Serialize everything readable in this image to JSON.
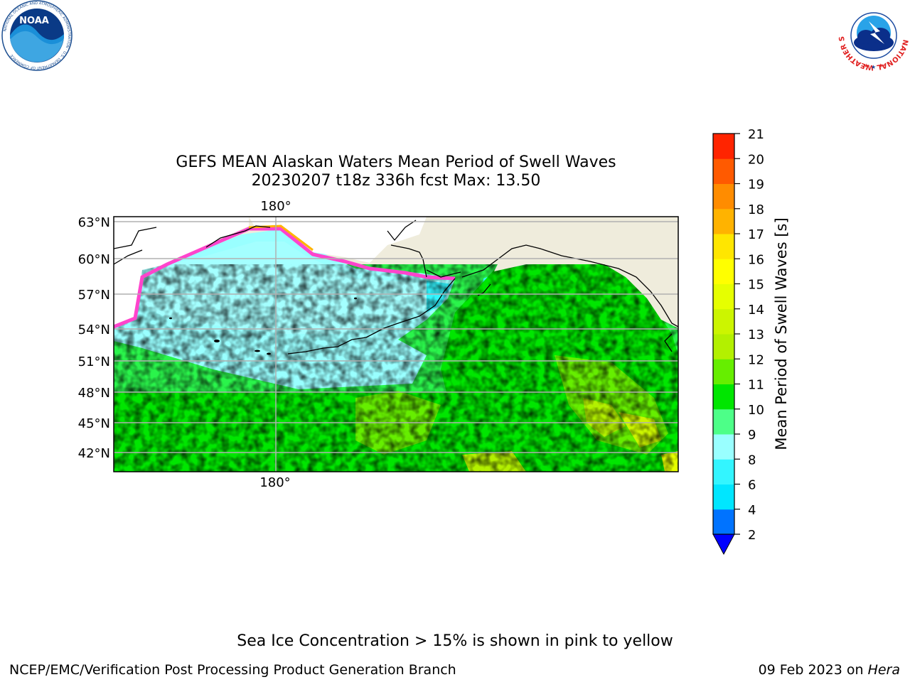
{
  "title": {
    "line1": "GEFS MEAN Alaskan Waters Mean Period of Swell Waves",
    "line2": "20230207 t18z 336h fcst   Max: 13.50"
  },
  "map": {
    "lat_labels": [
      "63°N",
      "60°N",
      "57°N",
      "54°N",
      "51°N",
      "48°N",
      "45°N",
      "42°N"
    ],
    "lon_label_top": "180°",
    "lon_label_bottom": "180°"
  },
  "colorbar": {
    "label": "Mean Period of Swell Waves [s]",
    "ticks": [
      "2",
      "4",
      "6",
      "8",
      "9",
      "10",
      "11",
      "12",
      "13",
      "14",
      "15",
      "16",
      "17",
      "18",
      "19",
      "20",
      "21"
    ],
    "colors": [
      "#0073ff",
      "#00e6ff",
      "#33f5ff",
      "#99ffff",
      "#4dff88",
      "#00e600",
      "#66ee00",
      "#b3f000",
      "#ccf500",
      "#e6ff00",
      "#ffff00",
      "#ffe600",
      "#ffb300",
      "#ff8c00",
      "#ff5a00",
      "#ff2400",
      "#ff0000"
    ],
    "under_color": "#0000ff"
  },
  "note": "Sea Ice Concentration > 15% is shown in pink to yellow",
  "footer": {
    "left": "NCEP/EMC/Verification Post Processing Product Generation Branch",
    "date": "09 Feb 2023 on ",
    "machine": "Hera"
  },
  "logos": {
    "noara_logo_text": "NOAA",
    "noaa_ring_text": "NATIONAL OCEANIC AND ATMOSPHERIC ADMINISTRATION · U.S. DEPARTMENT OF COMMERCE",
    "nws_ring_text": "NATIONAL WEATHER SERVICE"
  }
}
